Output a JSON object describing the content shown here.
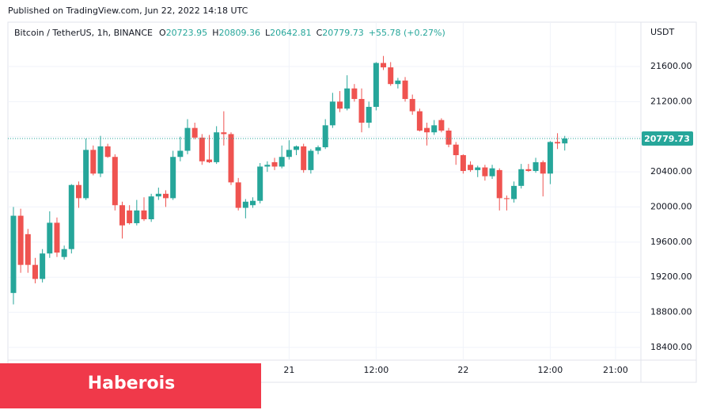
{
  "published": "Published on TradingView.com, Jun 22, 2022 14:18 UTC",
  "banner": "Haberois",
  "chart_data": {
    "type": "candlestick",
    "title": "Bitcoin / TetherUS, 1h, BINANCE",
    "ohlc_letters": [
      "O",
      "H",
      "L",
      "C"
    ],
    "change_label": "+55.78 (+0.27%)",
    "y_axis_label": "USDT",
    "up_color": "#26a69a",
    "down_color": "#ef5350",
    "grid": true,
    "open": [
      19020,
      19900,
      19690,
      19340,
      19180,
      19470,
      19820,
      19430,
      19520,
      20250,
      20100,
      20650,
      20380,
      20690,
      20570,
      20020,
      19960,
      19815,
      19960,
      19860,
      20120,
      20150,
      20100,
      20570,
      20640,
      20900,
      20790,
      20540,
      20510,
      20850,
      20830,
      20280,
      19990,
      20020,
      20070,
      20460,
      20510,
      20460,
      20570,
      20650,
      20690,
      20420,
      20640,
      20680,
      20930,
      21200,
      21120,
      21350,
      21230,
      20960,
      21140,
      21640,
      21590,
      21400,
      21440,
      21230,
      21090,
      20900,
      20850,
      20990,
      20870,
      20710,
      20590,
      20480,
      20420,
      20450,
      20350,
      20420,
      20100,
      20090,
      20240,
      20430,
      20410,
      20510,
      20380,
      20740,
      20723.95
    ],
    "high": [
      20000,
      19980,
      19750,
      19420,
      19520,
      19950,
      19880,
      19560,
      20260,
      20290,
      20780,
      20700,
      20810,
      20720,
      20600,
      20060,
      20020,
      20080,
      20110,
      20150,
      20220,
      20190,
      20640,
      20800,
      21000,
      20960,
      20830,
      20820,
      20920,
      21090,
      20850,
      20330,
      20090,
      20110,
      20500,
      20520,
      20560,
      20700,
      20760,
      20700,
      20720,
      20660,
      20700,
      21000,
      21300,
      21320,
      21500,
      21400,
      21350,
      21200,
      21650,
      21720,
      21650,
      21470,
      21480,
      21280,
      21120,
      20960,
      20990,
      21010,
      20900,
      20740,
      20600,
      20520,
      20470,
      20480,
      20480,
      20440,
      20130,
      20290,
      20490,
      20490,
      20560,
      20530,
      20750,
      20840,
      20809.36
    ],
    "low": [
      18890,
      19250,
      19250,
      19130,
      19140,
      19420,
      19430,
      19400,
      19470,
      19990,
      20080,
      20360,
      20340,
      20560,
      19960,
      19640,
      19800,
      19790,
      19840,
      19830,
      20080,
      20000,
      20080,
      20520,
      20600,
      20770,
      20480,
      20500,
      20490,
      20700,
      20250,
      19960,
      19870,
      19990,
      20040,
      20400,
      20420,
      20440,
      20540,
      20590,
      20390,
      20380,
      20600,
      20660,
      20900,
      21080,
      21100,
      21200,
      20850,
      20900,
      21100,
      21560,
      21380,
      21350,
      21200,
      21050,
      20860,
      20700,
      20820,
      20850,
      20680,
      20480,
      20380,
      20400,
      20340,
      20300,
      20320,
      19960,
      19960,
      20050,
      20210,
      20400,
      20390,
      20120,
      20260,
      20660,
      20642.81
    ],
    "close": [
      19900,
      19340,
      19340,
      19180,
      19470,
      19820,
      19480,
      19520,
      20250,
      20100,
      20650,
      20380,
      20690,
      20570,
      20020,
      19790,
      19815,
      19960,
      19860,
      20120,
      20150,
      20100,
      20570,
      20640,
      20900,
      20790,
      20520,
      20510,
      20850,
      20830,
      20280,
      19990,
      20060,
      20070,
      20460,
      20480,
      20460,
      20570,
      20650,
      20690,
      20420,
      20640,
      20680,
      20930,
      21200,
      21120,
      21350,
      21230,
      20960,
      21140,
      21640,
      21590,
      21400,
      21440,
      21230,
      21090,
      20870,
      20850,
      20930,
      20870,
      20710,
      20590,
      20410,
      20420,
      20450,
      20350,
      20440,
      20100,
      20090,
      20240,
      20430,
      20410,
      20510,
      20380,
      20740,
      20724,
      20779.73
    ],
    "xlim": [
      -0.76,
      86.5
    ],
    "xticks": [
      {
        "value": 38,
        "label": "21"
      },
      {
        "value": 50,
        "label": "12:00"
      },
      {
        "value": 62,
        "label": "22"
      },
      {
        "value": 74,
        "label": "12:00"
      },
      {
        "value": 83,
        "label": "21:00"
      }
    ],
    "ylim": [
      18255,
      22105
    ],
    "yticks": [
      {
        "value": 18400,
        "label": "18400.00"
      },
      {
        "value": 18800,
        "label": "18800.00"
      },
      {
        "value": 19200,
        "label": "19200.00"
      },
      {
        "value": 19600,
        "label": "19600.00"
      },
      {
        "value": 20000,
        "label": "20000.00"
      },
      {
        "value": 20400,
        "label": "20400.00"
      },
      {
        "value": 20800,
        "label": "20800.00"
      },
      {
        "value": 21200,
        "label": "21200.00"
      },
      {
        "value": 21600,
        "label": "21600.00"
      }
    ]
  }
}
